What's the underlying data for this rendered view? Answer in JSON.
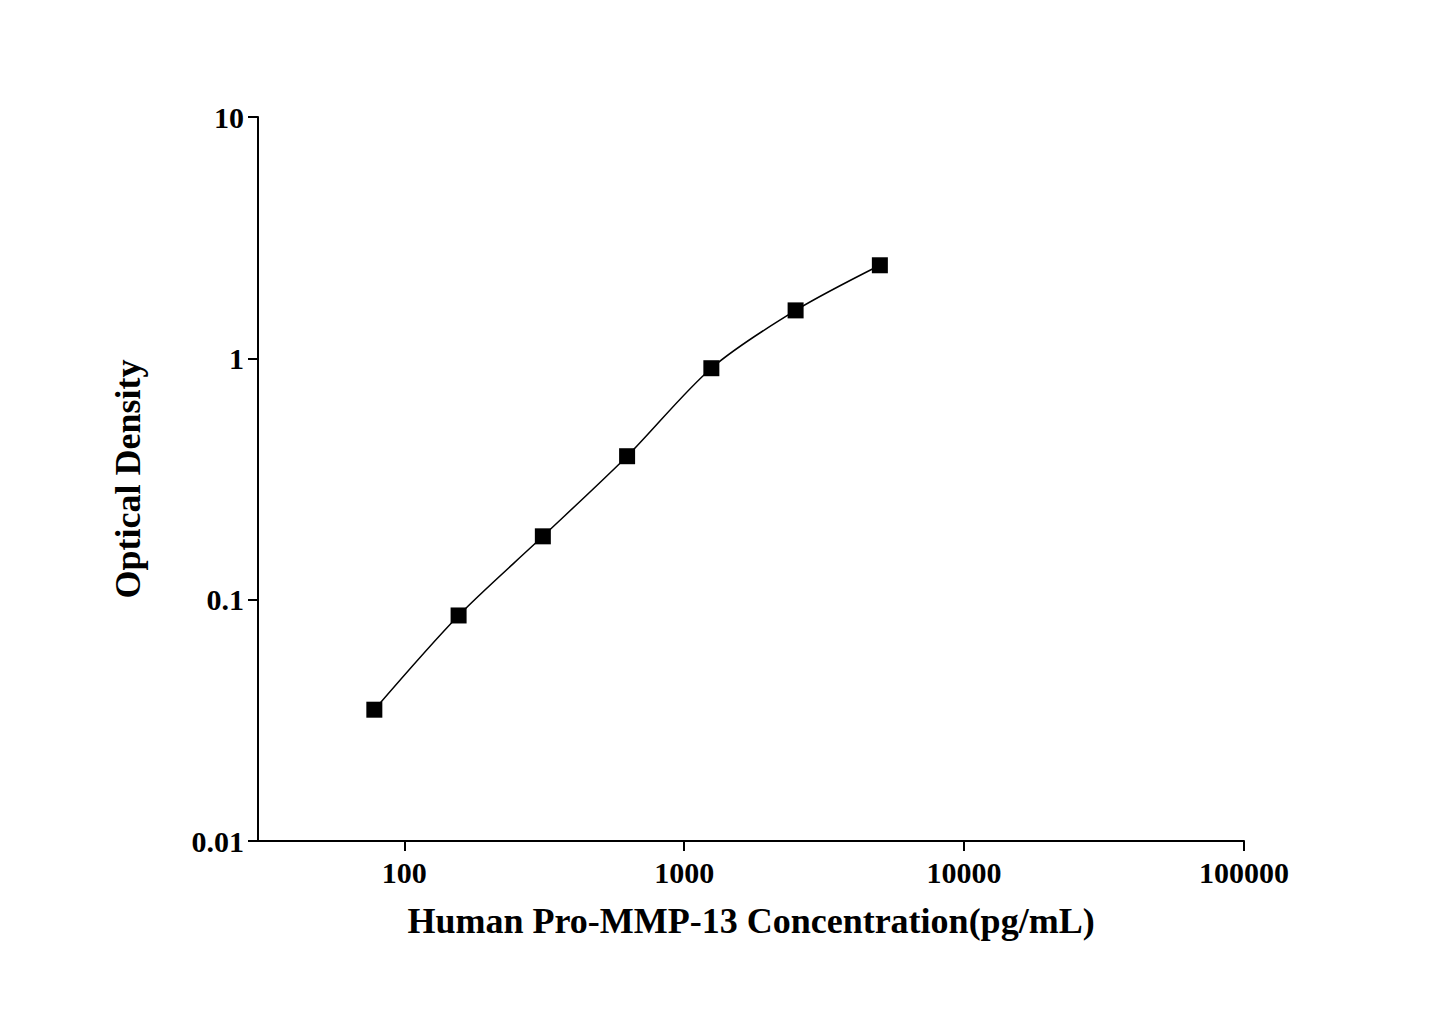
{
  "chart_data": {
    "type": "line",
    "x": [
      78.125,
      156.25,
      312.5,
      625,
      1250,
      2500,
      5000
    ],
    "values": [
      0.035,
      0.086,
      0.183,
      0.393,
      0.91,
      1.58,
      2.43
    ],
    "xlabel": "Human Pro-MMP-13 Concentration(pg/mL)",
    "ylabel": "Optical Density",
    "xlim": [
      30,
      100000
    ],
    "xticks": [
      100,
      1000,
      10000,
      100000
    ],
    "ylim": [
      0.01,
      10
    ],
    "yticks": [
      0.01,
      0.1,
      1,
      10
    ],
    "log": true,
    "grid": false,
    "color": "#000000",
    "marker": "square",
    "line_style": "solid"
  }
}
